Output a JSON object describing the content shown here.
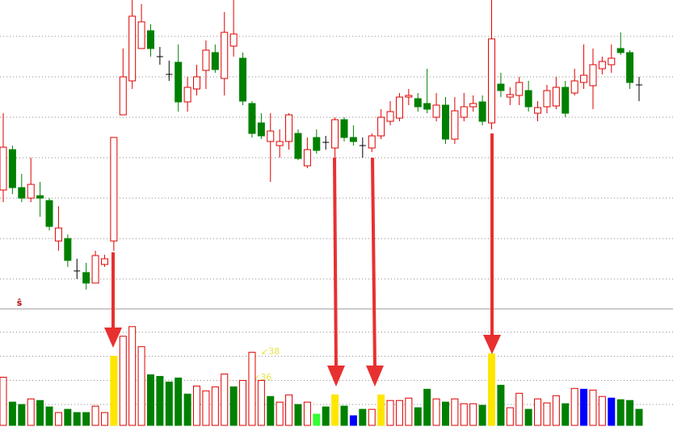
{
  "chart_data": [
    {
      "type": "candlestick",
      "up_color": "#e00000",
      "down_color": "#008000",
      "flat_color": "#000000",
      "ylim": [
        0,
        380
      ],
      "grid_lines": [
        335,
        285,
        235,
        185,
        135,
        85,
        35
      ],
      "marker": "ŝ",
      "open": [
        145,
        195,
        148,
        135,
        138,
        132,
        82,
        85,
        45,
        43,
        30,
        53,
        82,
        238,
        280,
        320,
        342,
        310,
        288,
        303,
        254,
        270,
        293,
        315,
        283,
        323,
        308,
        252,
        228,
        205,
        200,
        205,
        215,
        175,
        210,
        204,
        197,
        232,
        210,
        200,
        197,
        212,
        230,
        234,
        260,
        258,
        252,
        235,
        250,
        208,
        235,
        248,
        254,
        228,
        276,
        260,
        262,
        268,
        240,
        248,
        249,
        272,
        265,
        278,
        274,
        295,
        300,
        320,
        315,
        275
      ],
      "high": [
        240,
        200,
        165,
        185,
        155,
        135,
        125,
        90,
        60,
        55,
        70,
        65,
        210,
        320,
        380,
        375,
        350,
        322,
        305,
        325,
        285,
        300,
        330,
        325,
        365,
        380,
        315,
        255,
        240,
        240,
        220,
        240,
        220,
        210,
        220,
        212,
        235,
        235,
        225,
        210,
        215,
        245,
        255,
        265,
        270,
        265,
        295,
        265,
        260,
        260,
        265,
        262,
        262,
        380,
        290,
        272,
        285,
        280,
        255,
        275,
        285,
        280,
        295,
        325,
        320,
        310,
        325,
        340,
        318,
        285
      ],
      "low": [
        130,
        140,
        130,
        130,
        112,
        95,
        70,
        50,
        35,
        22,
        30,
        50,
        70,
        238,
        270,
        320,
        310,
        300,
        280,
        242,
        242,
        262,
        270,
        290,
        262,
        310,
        250,
        210,
        208,
        155,
        185,
        195,
        182,
        172,
        190,
        195,
        185,
        205,
        200,
        185,
        192,
        208,
        225,
        230,
        250,
        242,
        240,
        230,
        202,
        202,
        230,
        242,
        225,
        220,
        260,
        250,
        250,
        242,
        230,
        240,
        245,
        235,
        262,
        270,
        245,
        288,
        290,
        312,
        270,
        255
      ],
      "close": [
        198,
        148,
        135,
        152,
        135,
        100,
        98,
        58,
        45,
        30,
        64,
        60,
        210,
        285,
        360,
        353,
        320,
        310,
        288,
        254,
        272,
        285,
        318,
        294,
        340,
        338,
        255,
        215,
        212,
        218,
        205,
        238,
        184,
        195,
        194,
        204,
        232,
        210,
        205,
        200,
        212,
        235,
        242,
        260,
        262,
        248,
        245,
        250,
        208,
        243,
        248,
        252,
        230,
        332,
        268,
        263,
        278,
        248,
        247,
        268,
        272,
        240,
        280,
        287,
        300,
        304,
        308,
        315,
        278,
        275
      ]
    },
    {
      "type": "bar",
      "ylim": [
        0,
        143
      ],
      "grid_lines": [
        116,
        86,
        56,
        26
      ],
      "hollow_color": "#e00000",
      "values": [
        60,
        29,
        26,
        33,
        31,
        23,
        16,
        20,
        16,
        16,
        24,
        16,
        86,
        111,
        123,
        98,
        63,
        61,
        54,
        59,
        39,
        49,
        43,
        48,
        64,
        48,
        56,
        91,
        56,
        36,
        29,
        38,
        26,
        29,
        14,
        23,
        38,
        24,
        12,
        20,
        20,
        38,
        31,
        31,
        34,
        22,
        45,
        33,
        29,
        33,
        27,
        27,
        25,
        89,
        50,
        22,
        40,
        20,
        33,
        28,
        37,
        27,
        46,
        45,
        44,
        36,
        34,
        32,
        31,
        20
      ],
      "colors": [
        "#e00000",
        "#008000",
        "#008000",
        "#e00000",
        "#008000",
        "#008000",
        "#e00000",
        "#008000",
        "#008000",
        "#008000",
        "#e00000",
        "#e00000",
        "#ffe600",
        "#e00000",
        "#e00000",
        "#e00000",
        "#008000",
        "#008000",
        "#008000",
        "#008000",
        "#008000",
        "#e00000",
        "#e00000",
        "#e00000",
        "#e00000",
        "#008000",
        "#e00000",
        "#e00000",
        "#e00000",
        "#008000",
        "#e00000",
        "#e00000",
        "#008000",
        "#e00000",
        "#33ff33",
        "#008000",
        "#ffe600",
        "#008000",
        "#0000ff",
        "#008000",
        "#e00000",
        "#ffe600",
        "#e00000",
        "#e00000",
        "#e00000",
        "#008000",
        "#008000",
        "#e00000",
        "#008000",
        "#e00000",
        "#e00000",
        "#e00000",
        "#008000",
        "#ffe600",
        "#008000",
        "#e00000",
        "#e00000",
        "#008000",
        "#e00000",
        "#e00000",
        "#e00000",
        "#008000",
        "#e00000",
        "#0000ff",
        "#e00000",
        "#e00000",
        "#0000ff",
        "#008000",
        "#008000",
        "#008000"
      ],
      "annotations": [
        "↙38",
        "↙36"
      ]
    }
  ]
}
